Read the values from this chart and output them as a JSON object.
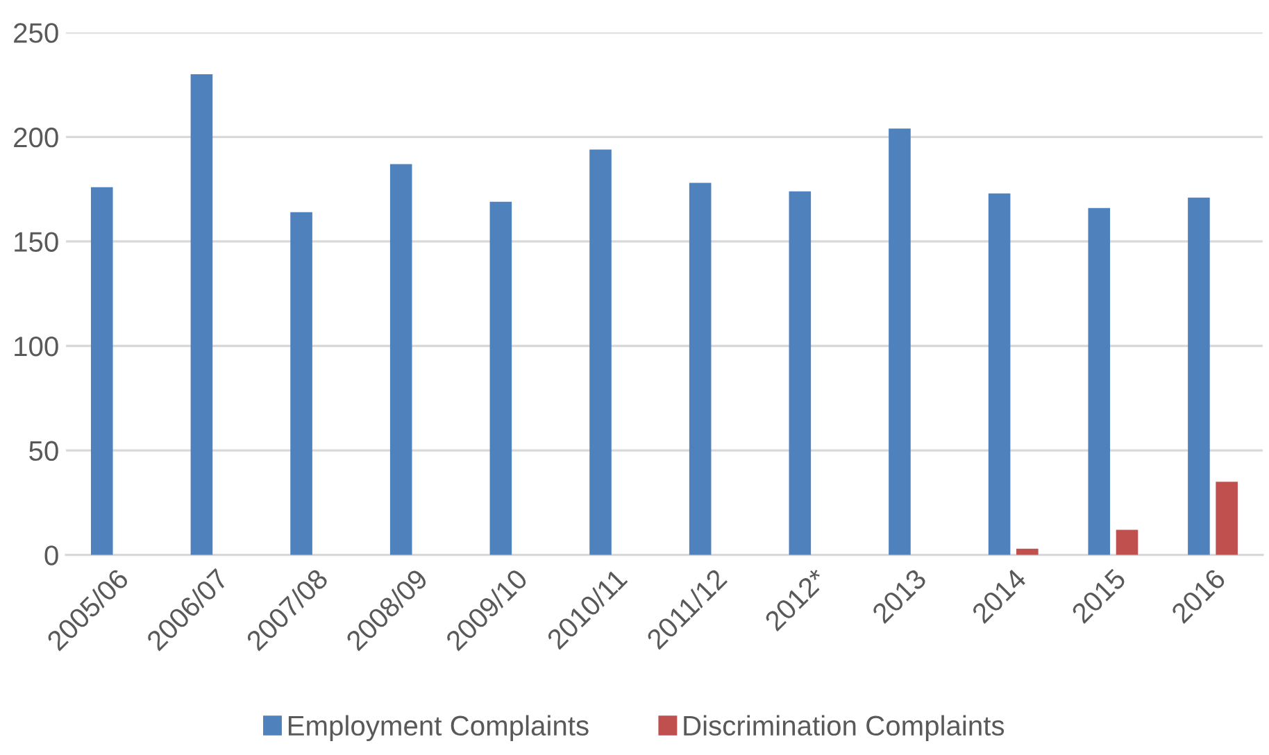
{
  "chart_data": {
    "type": "bar",
    "categories": [
      "2005/06",
      "2006/07",
      "2007/08",
      "2008/09",
      "2009/10",
      "2010/11",
      "2011/12",
      "2012*",
      "2013",
      "2014",
      "2015",
      "2016"
    ],
    "series": [
      {
        "name": "Employment Complaints",
        "color": "#4f81bd",
        "values": [
          176,
          230,
          164,
          187,
          169,
          194,
          178,
          174,
          204,
          173,
          166,
          171
        ]
      },
      {
        "name": "Discrimination Complaints",
        "color": "#c0504d",
        "values": [
          null,
          null,
          null,
          null,
          null,
          null,
          null,
          null,
          null,
          3,
          12,
          35
        ]
      }
    ],
    "ylim": [
      0,
      250
    ],
    "yticks": [
      0,
      50,
      100,
      150,
      200,
      250
    ],
    "grid": "y",
    "legend": "bottom"
  }
}
